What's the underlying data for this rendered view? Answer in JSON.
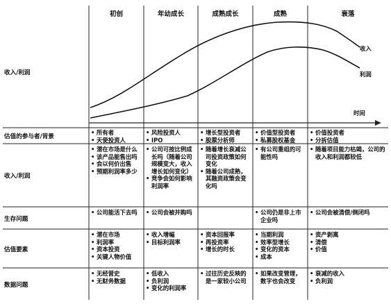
{
  "stages": [
    "初创",
    "年幼成长",
    "成熟成长",
    "成熟",
    "衰落"
  ],
  "chart": {
    "ylabel": "收入/利润",
    "xlabel": "时间",
    "series": [
      {
        "name": "收入"
      },
      {
        "name": "利润"
      }
    ]
  },
  "rows": [
    {
      "label": "估值的参与者/背景",
      "cells": [
        [
          "所有者",
          "天使投资人"
        ],
        [
          "风险投资人",
          "IPO"
        ],
        [
          "增长型投资者",
          "股票分析师"
        ],
        [
          "价值型投资者",
          "私募股权基金"
        ],
        [
          "价值投资者",
          "分拆估值"
        ]
      ]
    },
    {
      "label": "收入/利润",
      "cells": [
        [
          "潜在市场是什么",
          "该产品能售出吗",
          "会以何价出售",
          "预期利润率多少"
        ],
        [
          "公司可按比例成长吗（随着公司规模变大，收入增长如何变化）",
          "竞争会如何影响利润率"
        ],
        [
          "随着增长衰减公司投资政策如何变化",
          "随着公司成熟，其融资政策会变化吗"
        ],
        [
          "有公司重组的可能性吗"
        ],
        [
          "随着项目能力枯竭，公司的收入和利润都较低"
        ]
      ]
    },
    {
      "label": "生存问题",
      "cells": [
        [
          "公司能活下去吗"
        ],
        [
          "公司会被并购吗"
        ],
        [],
        [
          "公司仍是非上市企业吗"
        ],
        [
          "公司会被清偿/倒闭吗"
        ]
      ]
    },
    {
      "label": "估值要素",
      "cells": [
        [
          "潜在市场",
          "利润率",
          "资本投资",
          "关键人物价值"
        ],
        [
          "收入增幅",
          "目标利润率"
        ],
        [
          "资本回报率",
          "再投资率",
          "增长的时长"
        ],
        [
          "当期利润",
          "效率型增长",
          "变化的资本",
          "成本"
        ],
        [
          "资产剥离",
          "清偿",
          "价值"
        ]
      ]
    },
    {
      "label": "数据问题",
      "cells": [
        [
          "无经营史",
          "无财务数据"
        ],
        [
          "低收入",
          "负利润",
          "变化的利润率"
        ],
        [
          "过往历史反映的是一家较小公司"
        ],
        [
          "如果改变管理，数字也会改变"
        ],
        [
          "衰减的收入",
          "负利润"
        ]
      ]
    }
  ]
}
